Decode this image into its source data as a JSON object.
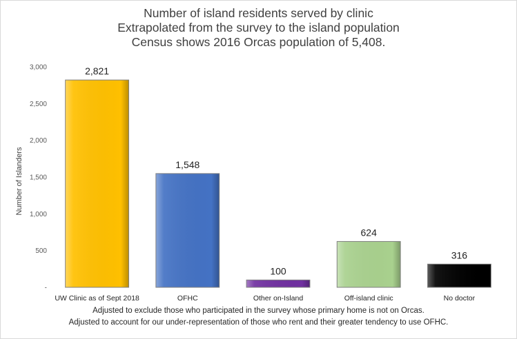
{
  "chart_data": {
    "type": "bar",
    "title_lines": [
      "Number of island residents served by clinic",
      "Extrapolated from the survey to the island population",
      "Census shows 2016 Orcas population of 5,408."
    ],
    "ylabel": "Number  of Islanders",
    "xlabel": "",
    "ylim": [
      0,
      3000
    ],
    "yticks": [
      0,
      500,
      1000,
      1500,
      2000,
      2500,
      3000
    ],
    "ytick_labels": [
      "-",
      "500",
      "1,000",
      "1,500",
      "2,000",
      "2,500",
      "3,000"
    ],
    "categories": [
      "UW Clinic as of Sept 2018",
      "OFHC",
      "Other on-Island",
      "Off-island clinic",
      "No doctor"
    ],
    "values": [
      2821,
      1548,
      100,
      624,
      316
    ],
    "value_labels": [
      "2,821",
      "1,548",
      "100",
      "624",
      "316"
    ],
    "colors": [
      "#ffc000",
      "#4472c4",
      "#7030a0",
      "#a9d18e",
      "#000000"
    ],
    "grid": false,
    "legend": "none",
    "footnotes": [
      "Adjusted to exclude those who participated in the survey whose primary home is not on Orcas.",
      "Adjusted to account for our under-representation of those who rent and their greater tendency  to use OFHC."
    ]
  }
}
